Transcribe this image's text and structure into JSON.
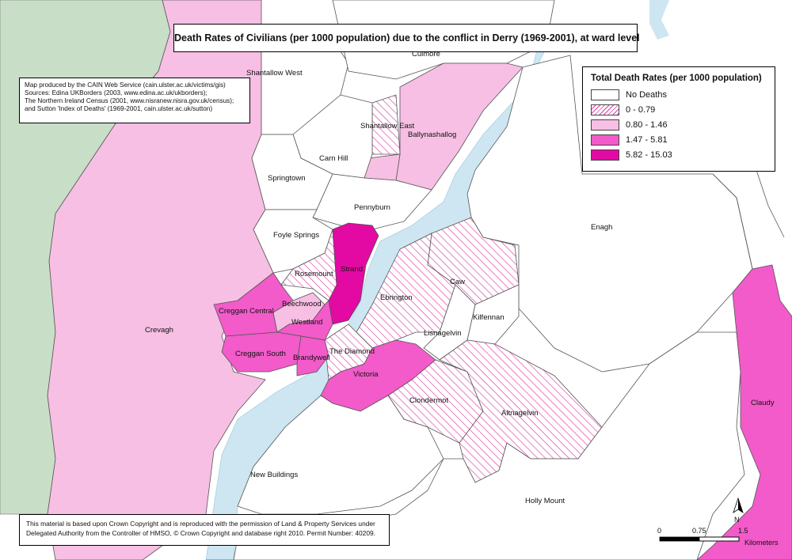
{
  "title": "Death Rates of Civilians (per 1000 population) due to the conflict in Derry (1969-2001), at ward level",
  "sources": [
    "Map produced by the CAIN Web Service (cain.ulster.ac.uk/victims/gis)",
    "Sources: Edina UKBorders (2003, www.edina.ac.uk/ukborders);",
    "The Northern Ireland Census (2001, www.nisranew.nisra.gov.uk/census);",
    "and Sutton 'Index of Deaths' (1969-2001, cain.ulster.ac.uk/sutton)"
  ],
  "legend": {
    "title": "Total Death Rates (per 1000 population)",
    "items": [
      {
        "label": "No Deaths",
        "color": "#ffffff",
        "pattern": "none"
      },
      {
        "label": "0 - 0.79",
        "color": "#e23aa7",
        "pattern": "hatch"
      },
      {
        "label": "0.80 - 1.46",
        "color": "#f7bfe3",
        "pattern": "solid"
      },
      {
        "label": "1.47 - 5.81",
        "color": "#f25bc9",
        "pattern": "solid"
      },
      {
        "label": "5.82 - 15.03",
        "color": "#e20aa3",
        "pattern": "solid"
      }
    ]
  },
  "copyright": [
    "This material is based upon Crown Copyright and is reproduced with the permission of Land & Property Services under",
    "Delegated Authority from the Controller of HMSO, © Crown Copyright and database right 2010. Permit Number: 40209."
  ],
  "wards": [
    {
      "name": "Culmore",
      "category": "No Deaths"
    },
    {
      "name": "Shantallow West",
      "category": "No Deaths"
    },
    {
      "name": "Shantallow East",
      "category": "0 - 0.79"
    },
    {
      "name": "Ballynashallog",
      "category": "0.80 - 1.46"
    },
    {
      "name": "Carn Hill",
      "category": "No Deaths"
    },
    {
      "name": "Springtown",
      "category": "No Deaths"
    },
    {
      "name": "Pennyburn",
      "category": "No Deaths"
    },
    {
      "name": "Foyle Springs",
      "category": "No Deaths"
    },
    {
      "name": "Enagh",
      "category": "No Deaths"
    },
    {
      "name": "Rosemount",
      "category": "0 - 0.79"
    },
    {
      "name": "Strand",
      "category": "5.82 - 15.03"
    },
    {
      "name": "Caw",
      "category": "0 - 0.79"
    },
    {
      "name": "Creggan Central",
      "category": "1.47 - 5.81"
    },
    {
      "name": "Beechwood",
      "category": "0.80 - 1.46"
    },
    {
      "name": "Ebrington",
      "category": "0 - 0.79"
    },
    {
      "name": "Kilfennan",
      "category": "No Deaths"
    },
    {
      "name": "Westland",
      "category": "1.47 - 5.81"
    },
    {
      "name": "Crevagh",
      "category": "0.80 - 1.46"
    },
    {
      "name": "Lisnagelvin",
      "category": "No Deaths"
    },
    {
      "name": "The Diamond",
      "category": "0 - 0.79"
    },
    {
      "name": "Creggan South",
      "category": "1.47 - 5.81"
    },
    {
      "name": "Brandywell",
      "category": "1.47 - 5.81"
    },
    {
      "name": "Victoria",
      "category": "1.47 - 5.81"
    },
    {
      "name": "Clondermot",
      "category": "0 - 0.79"
    },
    {
      "name": "Claudy",
      "category": "1.47 - 5.81"
    },
    {
      "name": "Altnagelvin",
      "category": "0 - 0.79"
    },
    {
      "name": "New Buildings",
      "category": "No Deaths"
    },
    {
      "name": "Holly Mount",
      "category": "No Deaths"
    }
  ],
  "scale_bar": {
    "ticks": [
      "0",
      "0.75",
      "1.5"
    ],
    "unit": "Kilometers"
  },
  "north_label": "N",
  "colors": {
    "border_region": "#c9dec7",
    "water": "#cde6f2",
    "boundary": "#555555"
  }
}
